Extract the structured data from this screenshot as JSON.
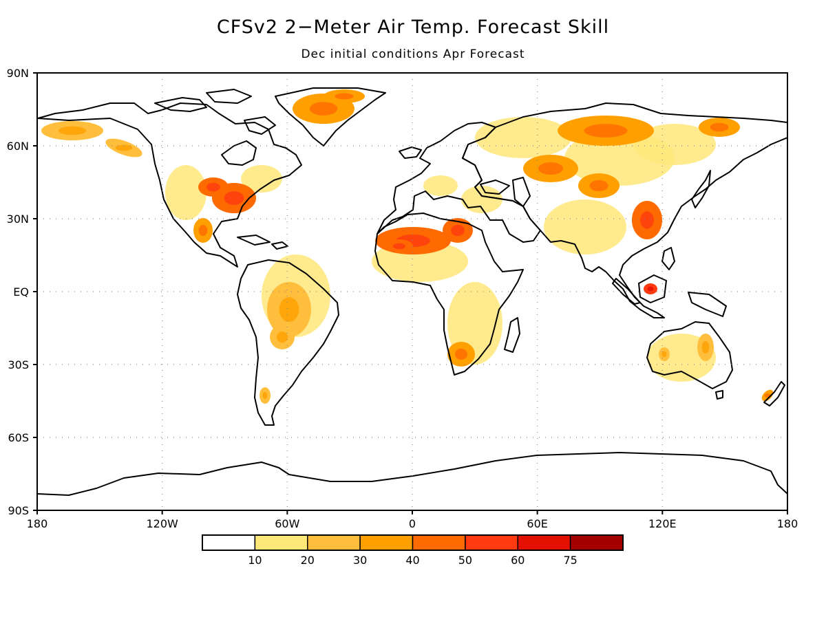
{
  "title": "CFSv2 2−Meter Air Temp. Forecast Skill",
  "subtitle": "Dec initial conditions  Apr Forecast",
  "lat_labels": [
    "90N",
    "60N",
    "30N",
    "EQ",
    "30S",
    "60S",
    "90S"
  ],
  "lon_labels": [
    "180",
    "120W",
    "60W",
    "0",
    "60E",
    "120E",
    "180"
  ],
  "grid": "dotted",
  "colorbar": {
    "colors": [
      "#ffffff",
      "#ffe87a",
      "#ffbf3c",
      "#ffa000",
      "#ff6a00",
      "#ff3a10",
      "#e31000",
      "#a50000"
    ],
    "labels": [
      "10",
      "20",
      "30",
      "40",
      "50",
      "60",
      "75"
    ]
  },
  "regions": [
    {
      "name": "Alaska",
      "level": 2
    },
    {
      "name": "Greenland",
      "level": 3
    },
    {
      "name": "Eastern United States",
      "level": 4
    },
    {
      "name": "Mexico",
      "level": 3
    },
    {
      "name": "South America",
      "level": 2
    },
    {
      "name": "North Africa / Sahara",
      "level": 4
    },
    {
      "name": "Southern Africa",
      "level": 3
    },
    {
      "name": "Siberia",
      "level": 3
    },
    {
      "name": "Central Asia",
      "level": 3
    },
    {
      "name": "East China",
      "level": 4
    },
    {
      "name": "Borneo",
      "level": 5
    },
    {
      "name": "Australia",
      "level": 2
    },
    {
      "name": "New Zealand",
      "level": 3
    }
  ]
}
